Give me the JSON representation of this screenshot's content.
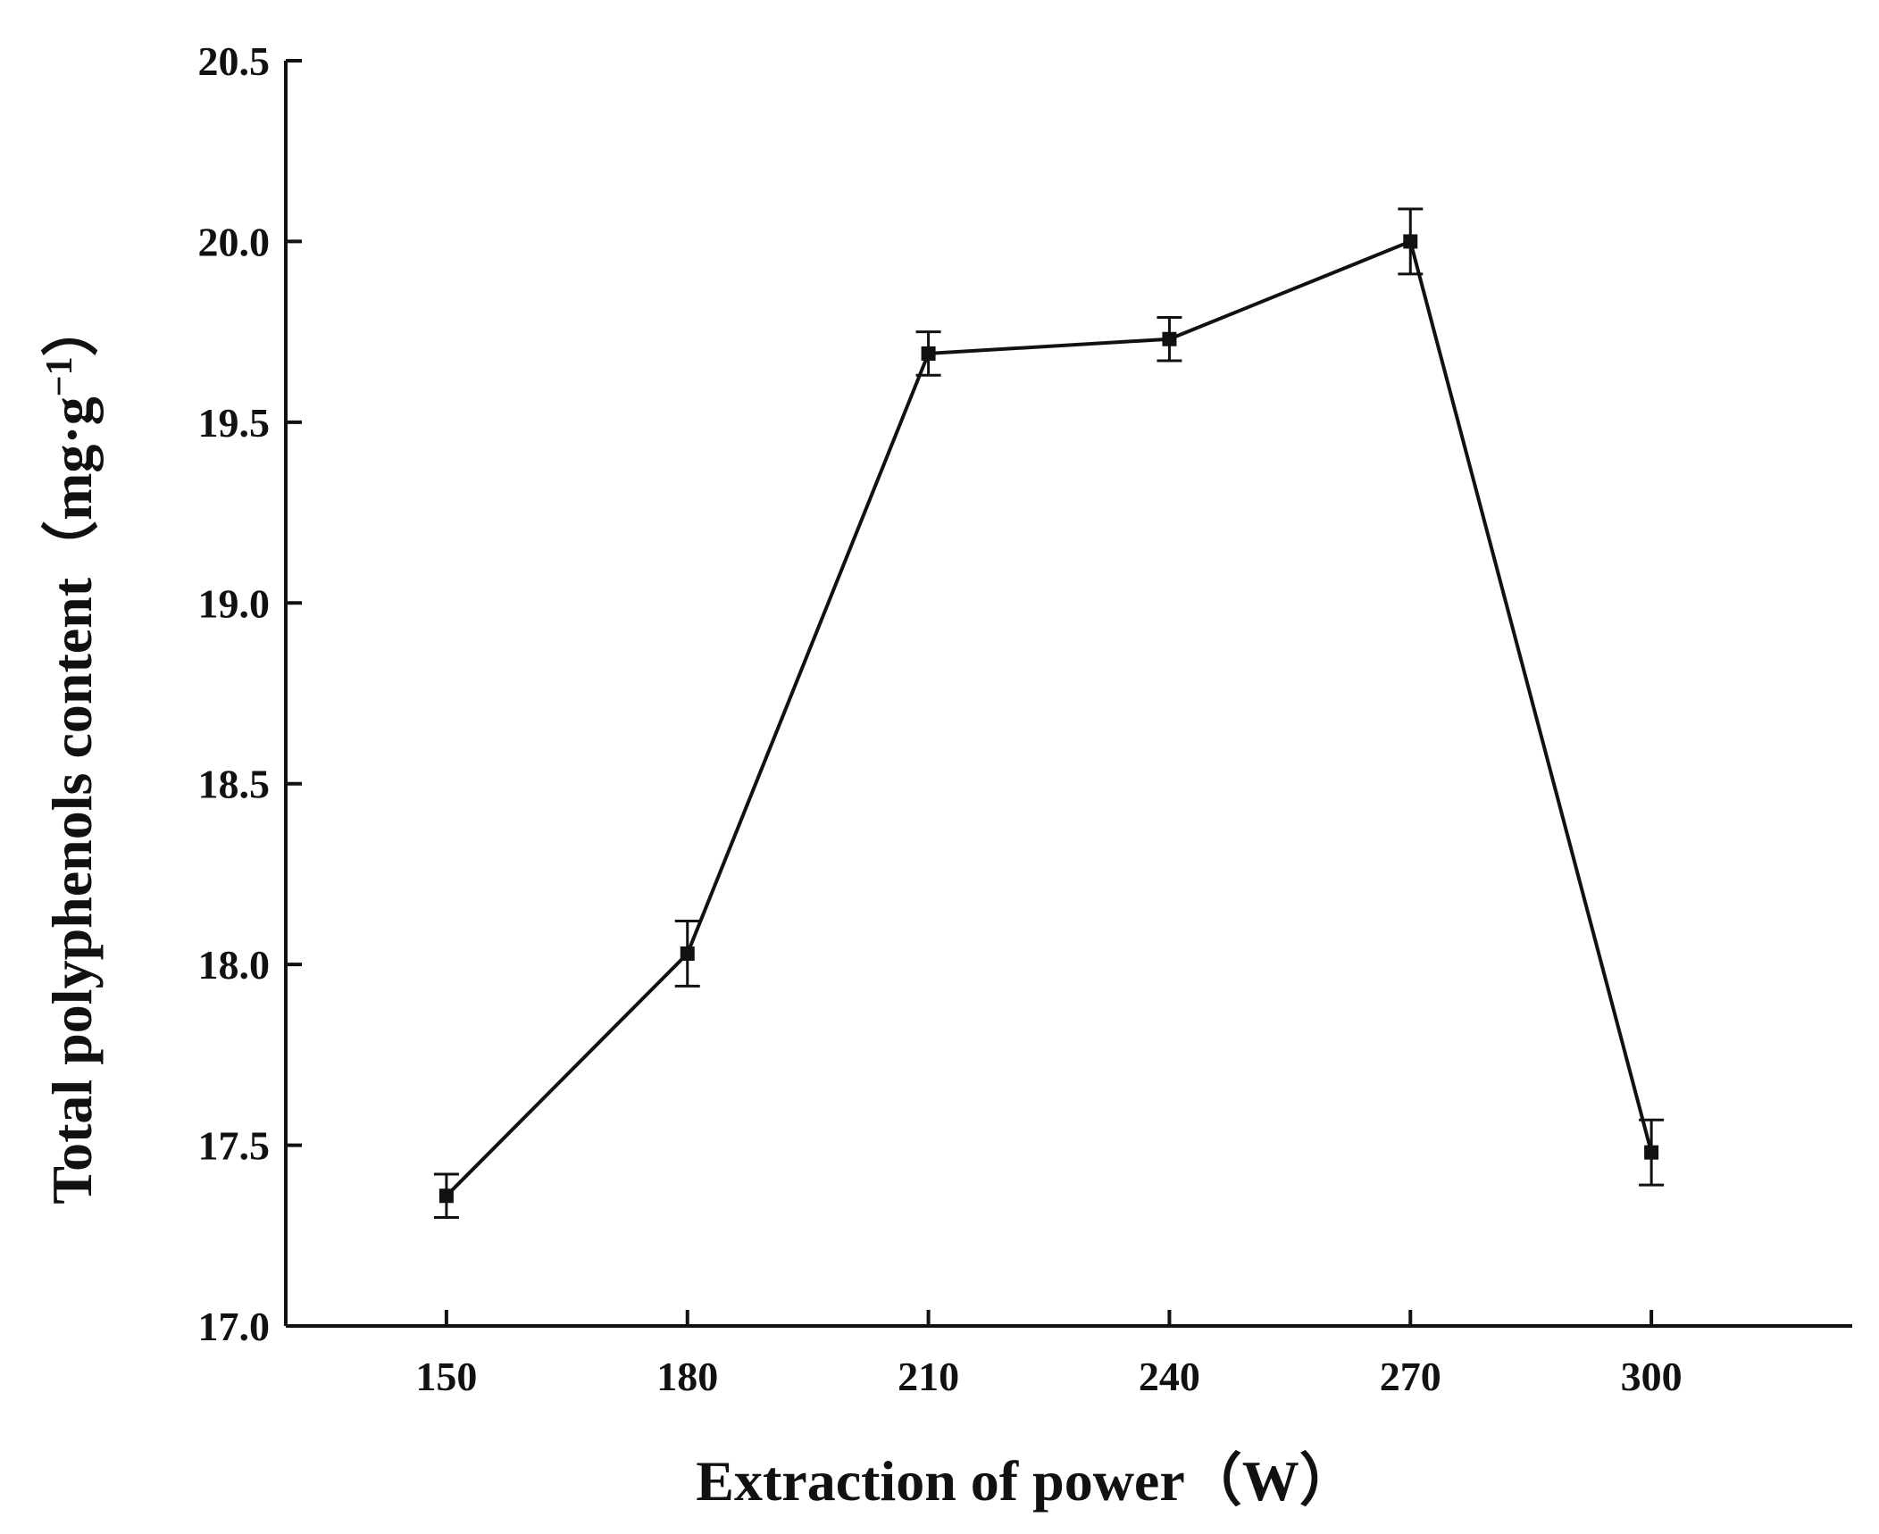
{
  "chart_data": {
    "type": "line",
    "title": "",
    "xlabel_main": "Extraction of power",
    "xlabel_unit": "（W）",
    "ylabel_main": "Total polyphenols content",
    "ylabel_unit_open": "（",
    "ylabel_unit": "mg·g",
    "ylabel_unit_exp": "−1",
    "ylabel_unit_close": "）",
    "x": [
      150,
      180,
      210,
      240,
      270,
      300
    ],
    "x_tick_labels": [
      "150",
      "180",
      "210",
      "240",
      "270",
      "300"
    ],
    "xlim": [
      130,
      325
    ],
    "ylim": [
      17.0,
      20.5
    ],
    "y_ticks": [
      17.0,
      17.5,
      18.0,
      18.5,
      19.0,
      19.5,
      20.0,
      20.5
    ],
    "y_tick_labels": [
      "17.0",
      "17.5",
      "18.0",
      "18.5",
      "19.0",
      "19.5",
      "20.0",
      "20.5"
    ],
    "series": [
      {
        "name": "Total polyphenols content",
        "values": [
          17.36,
          18.03,
          19.69,
          19.73,
          20.0,
          17.48
        ],
        "errors": [
          0.06,
          0.09,
          0.06,
          0.06,
          0.09,
          0.09
        ]
      }
    ],
    "grid": false,
    "legend": "none",
    "colors": {
      "line": "#111111",
      "axis": "#111111"
    }
  }
}
